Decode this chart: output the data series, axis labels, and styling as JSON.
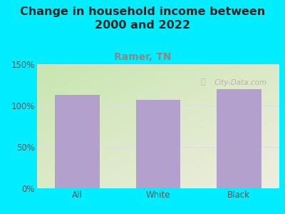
{
  "categories": [
    "All",
    "White",
    "Black"
  ],
  "values": [
    113,
    107,
    120
  ],
  "bar_color": "#b3a0cc",
  "title": "Change in household income between\n2000 and 2022",
  "subtitle": "Ramer, TN",
  "subtitle_color": "#888888",
  "title_fontsize": 11.5,
  "subtitle_fontsize": 10,
  "ylim": [
    0,
    150
  ],
  "yticks": [
    0,
    50,
    100,
    150
  ],
  "ytick_labels": [
    "0%",
    "50%",
    "100%",
    "150%"
  ],
  "background_color": "#00eeff",
  "plot_bg_topleft": "#c8e6b0",
  "plot_bg_bottomright": "#f0ede0",
  "watermark": "City-Data.com",
  "watermark_color": "#aaaaaa",
  "grid_color": "#dddddd",
  "tick_label_fontsize": 8.5,
  "bar_width": 0.55,
  "title_color": "#222222"
}
